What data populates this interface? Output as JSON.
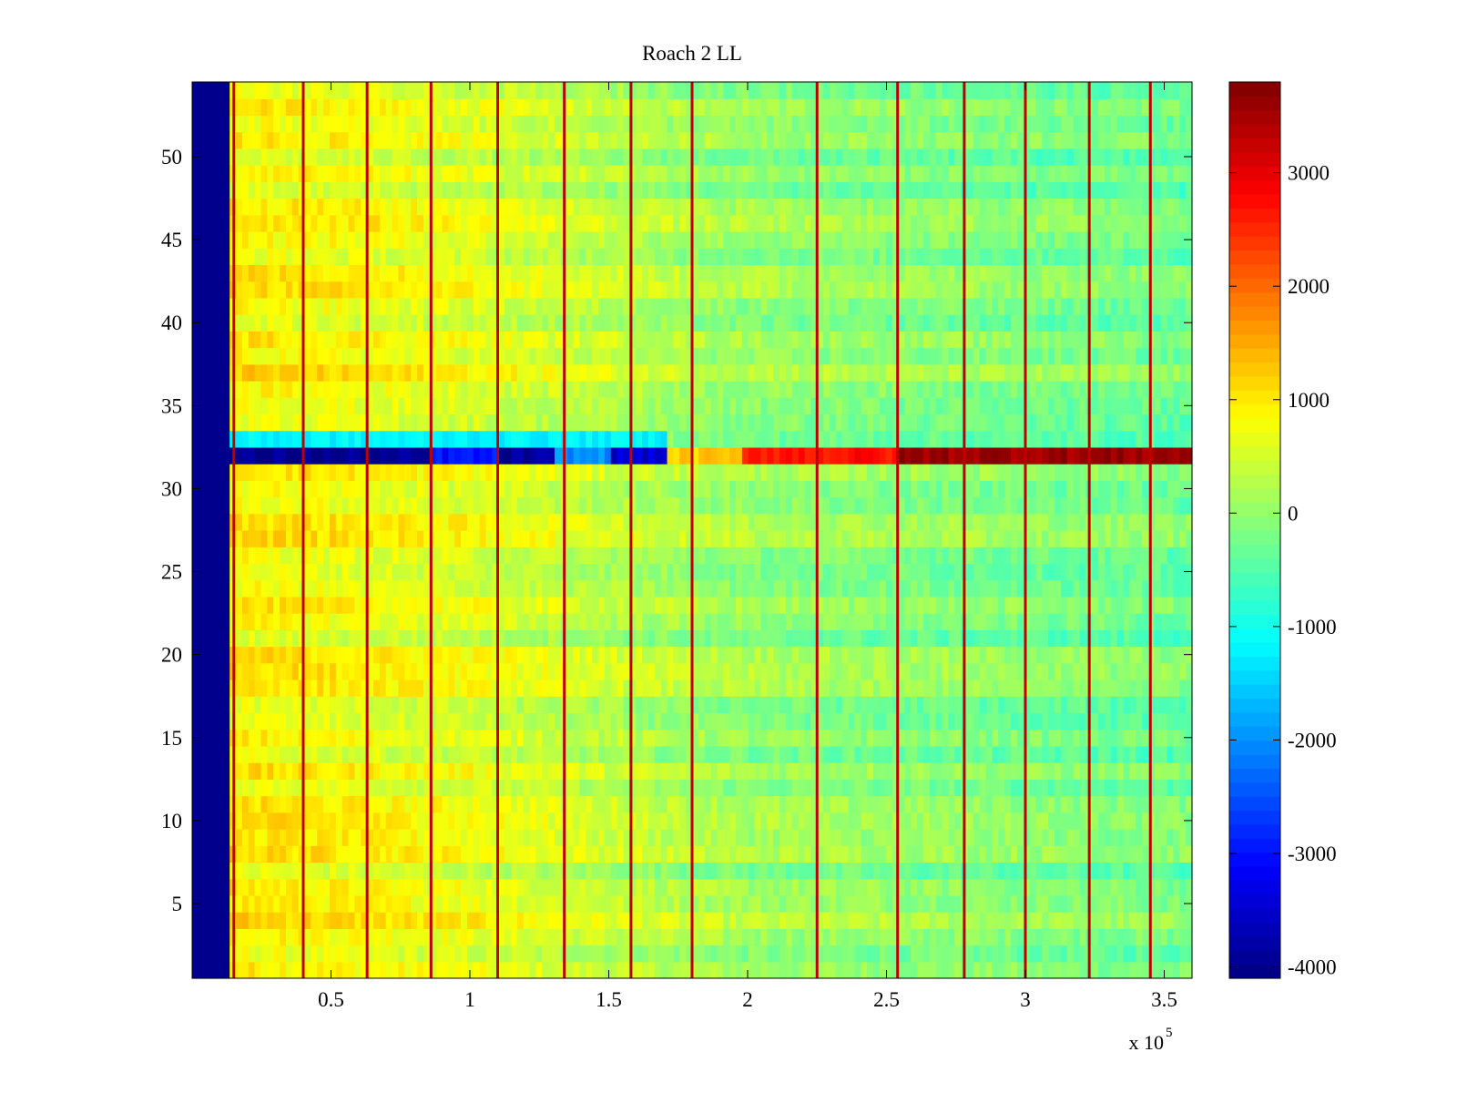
{
  "chart_data": {
    "type": "heatmap",
    "title": "Roach 2 LL",
    "xlabel": "",
    "ylabel": "",
    "x_multiplier_label": "x 10",
    "x_multiplier_exponent": "5",
    "xlim": [
      0,
      3.6
    ],
    "ylim": [
      0.5,
      54.5
    ],
    "x_ticks": [
      0.5,
      1,
      1.5,
      2,
      2.5,
      3,
      3.5
    ],
    "x_tick_labels": [
      "0.5",
      "1",
      "1.5",
      "2",
      "2.5",
      "3",
      "3.5"
    ],
    "y_ticks": [
      5,
      10,
      15,
      20,
      25,
      30,
      35,
      40,
      45,
      50
    ],
    "y_tick_labels": [
      "5",
      "10",
      "15",
      "20",
      "25",
      "30",
      "35",
      "40",
      "45",
      "50"
    ],
    "rows": 54,
    "colormap": "jet",
    "clim": [
      -4100,
      3800
    ],
    "colorbar_ticks": [
      3000,
      2000,
      1000,
      0,
      -1000,
      -2000,
      -3000,
      -4000
    ],
    "colorbar_tick_labels": [
      "3000",
      "2000",
      "1000",
      "0",
      "-1000",
      "-2000",
      "-3000",
      "-4000"
    ],
    "background_value_gradient": {
      "x": [
        0.15,
        1.0,
        2.0,
        3.6
      ],
      "value": [
        900,
        600,
        0,
        -300
      ]
    },
    "low_column_region": {
      "x_start": 0.01,
      "x_end": 0.13,
      "value": -4000
    },
    "spike_lines_x": [
      0.15,
      0.4,
      0.63,
      0.86,
      1.1,
      1.34,
      1.58,
      1.8,
      2.25,
      2.54,
      2.78,
      3.0,
      3.23,
      3.45
    ],
    "spike_value": 3300,
    "anomaly_row": {
      "row": 32,
      "segments": [
        {
          "x_start": 0.13,
          "x_end": 0.85,
          "value": -4000
        },
        {
          "x_start": 0.85,
          "x_end": 1.1,
          "value": -3000
        },
        {
          "x_start": 1.1,
          "x_end": 1.3,
          "value": -3900
        },
        {
          "x_start": 1.3,
          "x_end": 1.5,
          "value": -2000
        },
        {
          "x_start": 1.5,
          "x_end": 1.72,
          "value": -3500
        },
        {
          "x_start": 1.72,
          "x_end": 1.98,
          "value": 1200
        },
        {
          "x_start": 1.98,
          "x_end": 2.54,
          "value": 2700
        },
        {
          "x_start": 2.54,
          "x_end": 3.6,
          "value": 3600
        }
      ]
    },
    "adjacent_row_33_value": -1200
  }
}
